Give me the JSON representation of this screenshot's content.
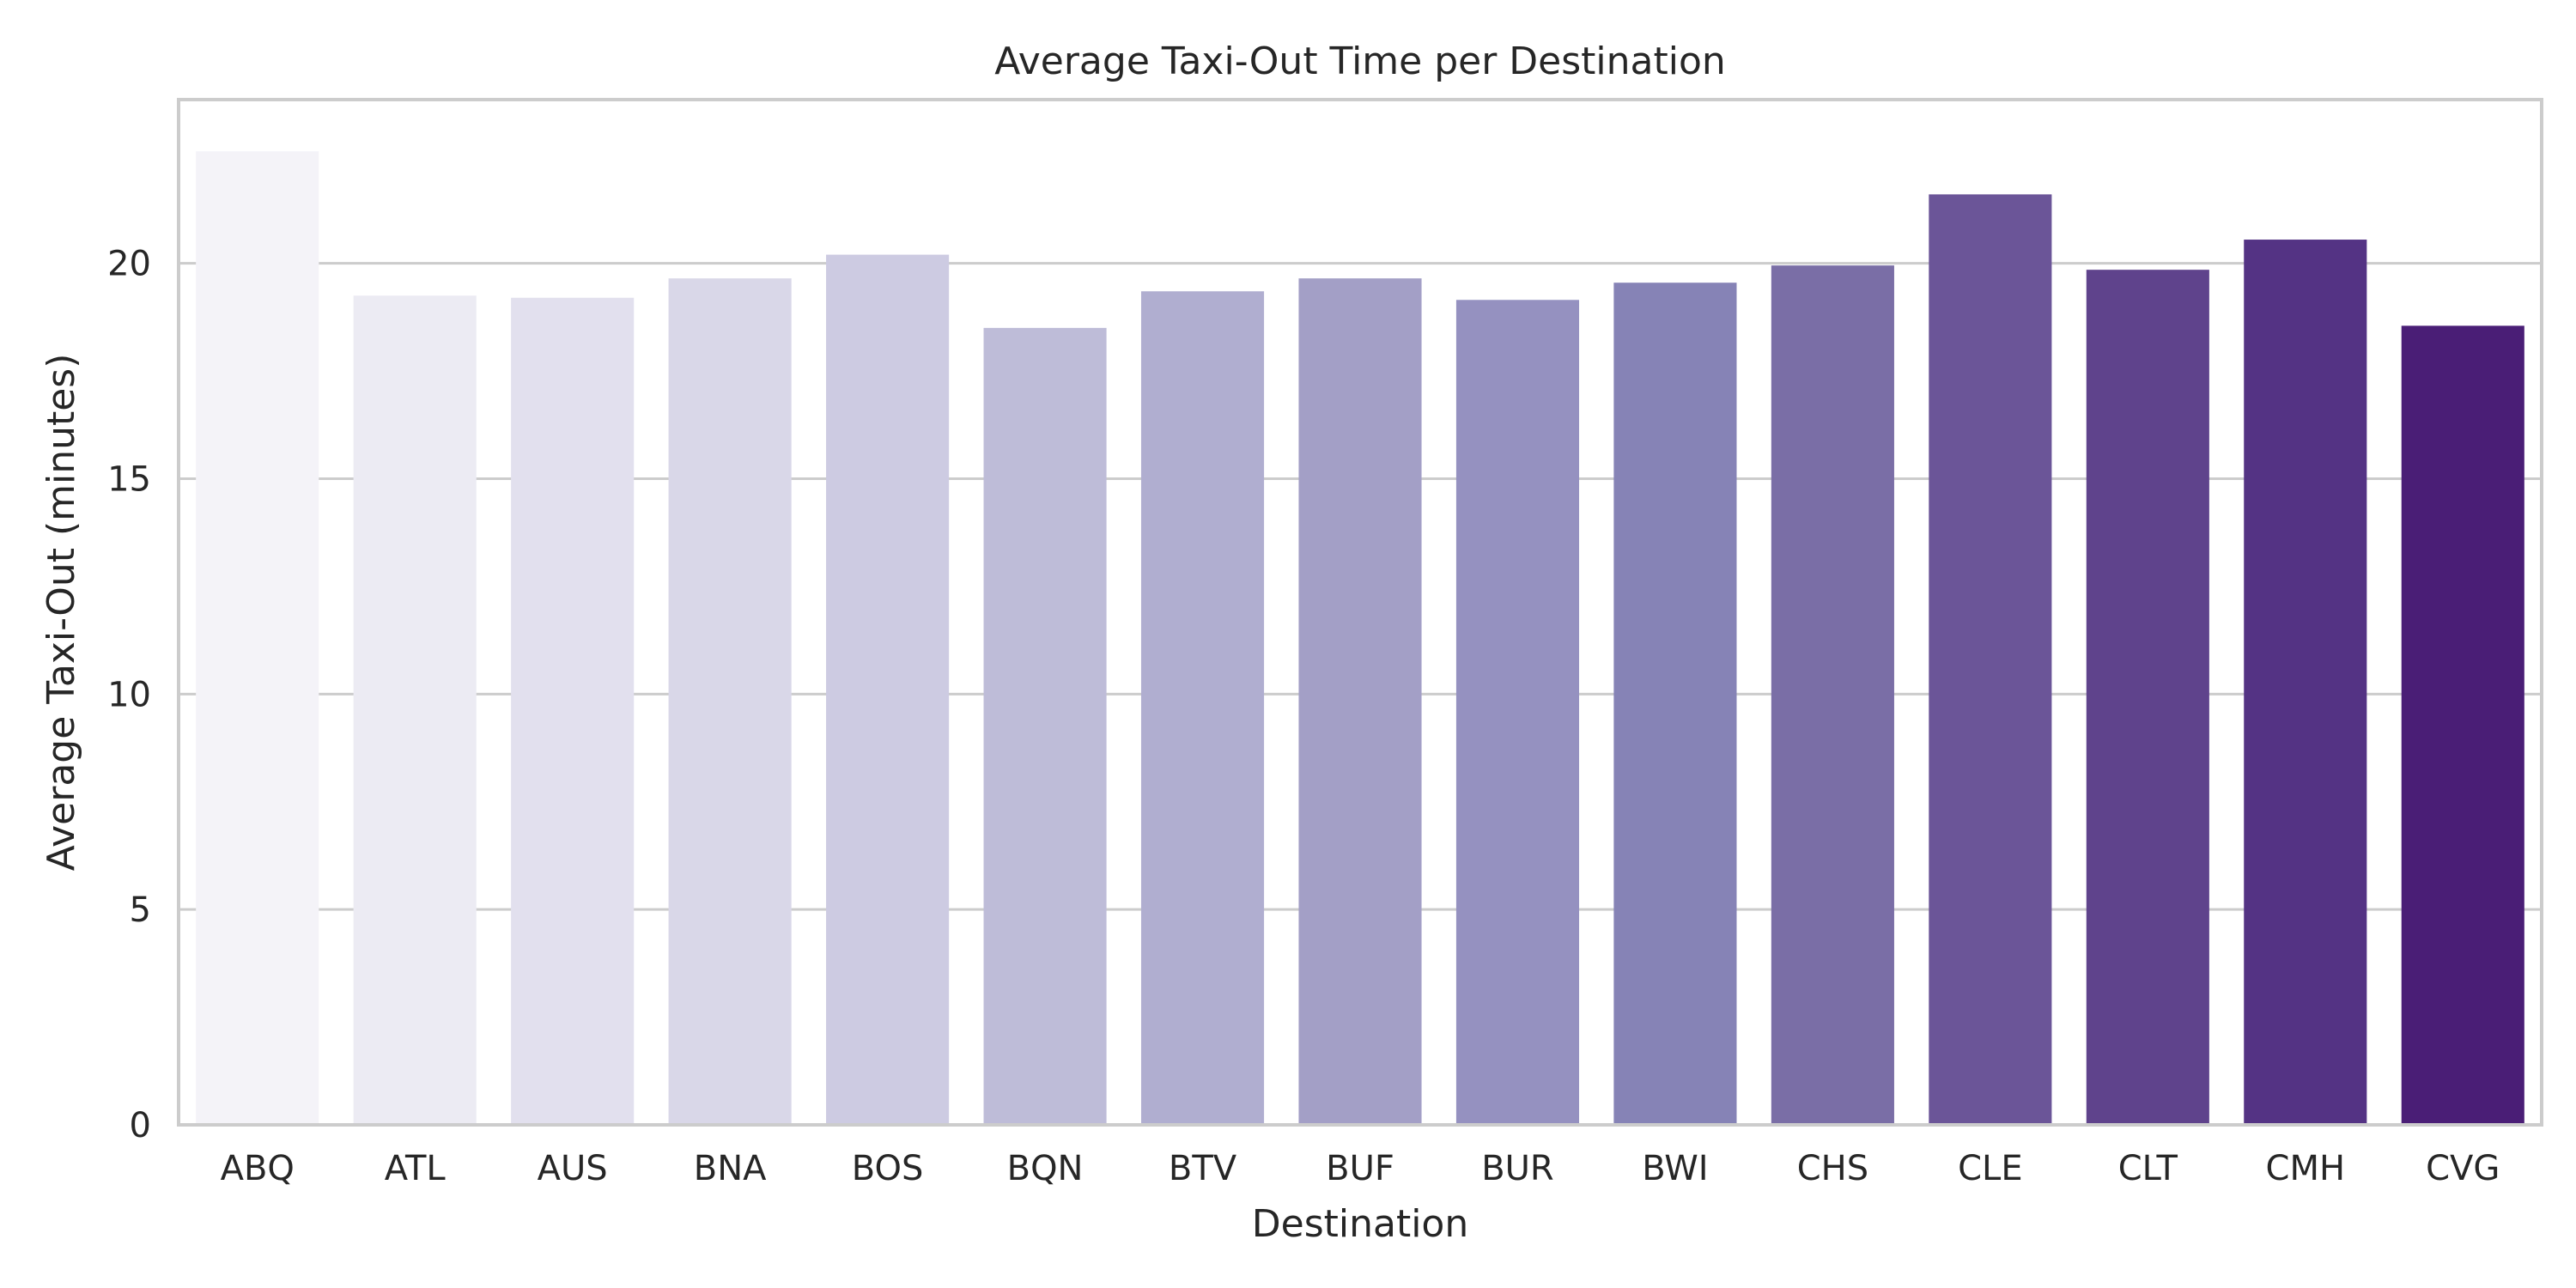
{
  "chart_data": {
    "type": "bar",
    "title": "Average Taxi-Out Time per Destination",
    "xlabel": "Destination",
    "ylabel": "Average Taxi-Out (minutes)",
    "categories": [
      "ABQ",
      "ATL",
      "AUS",
      "BNA",
      "BOS",
      "BQN",
      "BTV",
      "BUF",
      "BUR",
      "BWI",
      "CHS",
      "CLE",
      "CLT",
      "CMH",
      "CVG"
    ],
    "values": [
      22.6,
      19.25,
      19.2,
      19.65,
      20.2,
      18.5,
      19.35,
      19.65,
      19.15,
      19.55,
      19.95,
      21.6,
      19.85,
      20.55,
      18.55
    ],
    "colors": [
      "#f4f3f8",
      "#ecebf3",
      "#e2e0ee",
      "#d9d7e8",
      "#cdcbe2",
      "#bebcd8",
      "#b0aed0",
      "#a39fc6",
      "#9591c0",
      "#8683b6",
      "#7a6ea6",
      "#6b5598",
      "#5f438c",
      "#543384",
      "#4a1e76"
    ],
    "yticks": [
      0,
      5,
      10,
      15,
      20
    ],
    "ylim": [
      0,
      23.8
    ],
    "grid": true,
    "legend": "none"
  }
}
